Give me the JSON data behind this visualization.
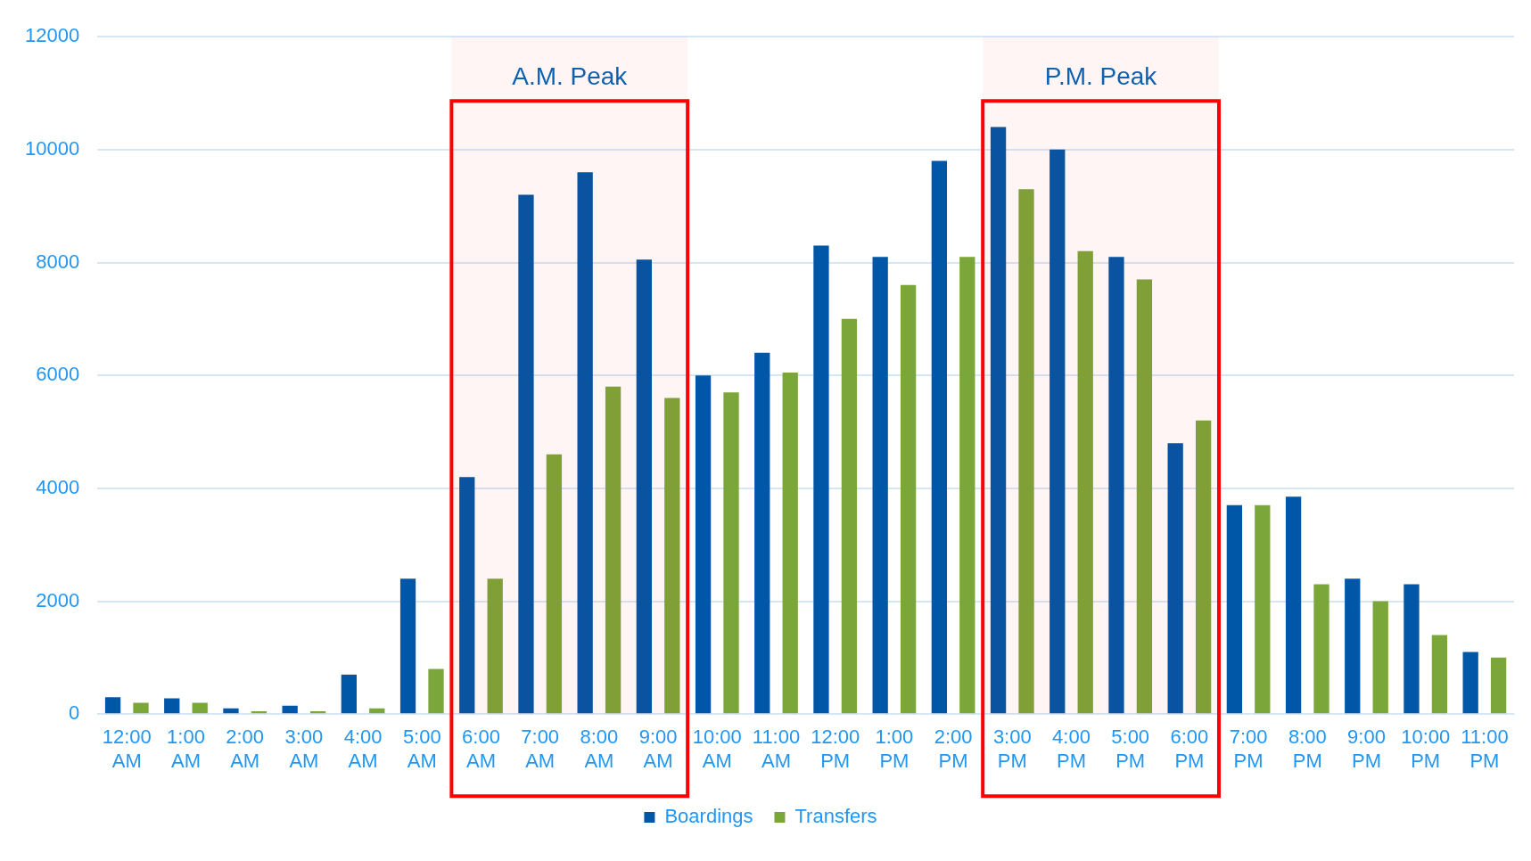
{
  "chart_data": {
    "type": "bar",
    "categories": [
      "12:00 AM",
      "1:00 AM",
      "2:00 AM",
      "3:00 AM",
      "4:00 AM",
      "5:00 AM",
      "6:00 AM",
      "7:00 AM",
      "8:00 AM",
      "9:00 AM",
      "10:00 AM",
      "11:00 AM",
      "12:00 PM",
      "1:00 PM",
      "2:00 PM",
      "3:00 PM",
      "4:00 PM",
      "5:00 PM",
      "6:00 PM",
      "7:00 PM",
      "8:00 PM",
      "9:00 PM",
      "10:00 PM",
      "11:00 PM"
    ],
    "series": [
      {
        "name": "Boardings",
        "color": "#0057a8",
        "values": [
          300,
          280,
          100,
          150,
          700,
          2400,
          4200,
          9200,
          9600,
          8050,
          6000,
          6400,
          8300,
          8100,
          9800,
          10400,
          10000,
          8100,
          4800,
          3700,
          3850,
          2400,
          2300,
          1100
        ]
      },
      {
        "name": "Transfers",
        "color": "#7ba639",
        "values": [
          200,
          200,
          50,
          50,
          100,
          800,
          2400,
          4600,
          5800,
          5600,
          5700,
          6050,
          7000,
          7600,
          8100,
          9300,
          8200,
          7700,
          5200,
          3700,
          2300,
          2000,
          1400,
          1000
        ]
      }
    ],
    "ylim": [
      0,
      12000
    ],
    "yticks": [
      0,
      2000,
      4000,
      6000,
      8000,
      10000,
      12000
    ],
    "grid": "y",
    "legend": "bottom",
    "bands": [
      {
        "axis": "x",
        "from": "6:00 AM",
        "to": "9:00 AM",
        "label": "A.M. Peak",
        "color": "#ff0000"
      },
      {
        "axis": "x",
        "from": "3:00 PM",
        "to": "6:00 PM",
        "label": "P.M. Peak",
        "color": "#ff0000"
      }
    ]
  }
}
